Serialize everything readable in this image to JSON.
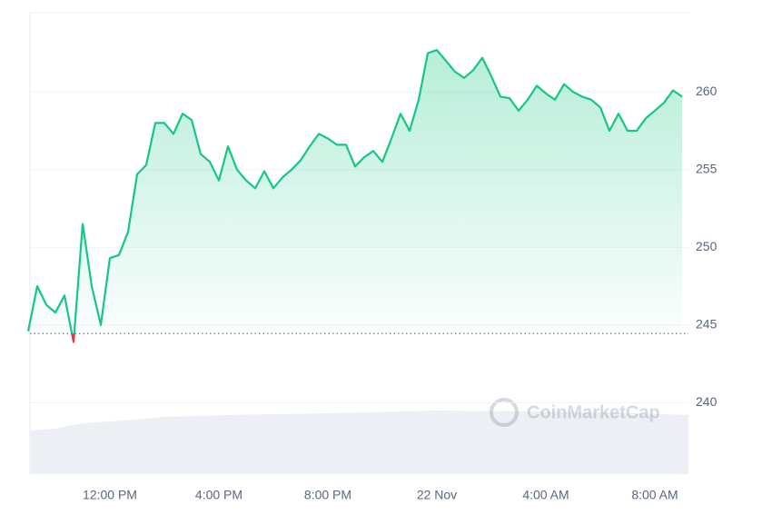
{
  "chart_data": {
    "type": "line",
    "watermark": "CoinMarketCap",
    "categories": [
      null,
      null,
      null,
      null,
      null,
      null,
      null,
      null,
      null,
      "12:00 PM",
      null,
      null,
      null,
      null,
      null,
      null,
      null,
      null,
      null,
      null,
      null,
      "4:00 PM",
      null,
      null,
      null,
      null,
      null,
      null,
      null,
      null,
      null,
      null,
      null,
      "8:00 PM",
      null,
      null,
      null,
      null,
      null,
      null,
      null,
      null,
      null,
      null,
      null,
      "22 Nov",
      null,
      null,
      null,
      null,
      null,
      null,
      null,
      null,
      null,
      null,
      null,
      "4:00 AM",
      null,
      null,
      null,
      null,
      null,
      null,
      null,
      null,
      null,
      null,
      null,
      "8:00 AM",
      null,
      null,
      null
    ],
    "values": [
      244.6,
      247.5,
      246.3,
      245.8,
      246.9,
      243.9,
      251.5,
      247.5,
      245,
      249.3,
      249.5,
      251,
      254.7,
      255.3,
      258,
      258,
      257.3,
      258.6,
      258.2,
      256,
      255.5,
      254.3,
      256.5,
      255,
      254.3,
      253.8,
      254.9,
      253.8,
      254.5,
      255,
      255.6,
      256.5,
      257.3,
      257,
      256.6,
      256.6,
      255.2,
      255.8,
      256.2,
      255.5,
      257,
      258.6,
      257.5,
      259.5,
      262.5,
      262.7,
      262,
      261.3,
      260.9,
      261.4,
      262.2,
      261,
      259.7,
      259.6,
      258.8,
      259.5,
      260.4,
      259.9,
      259.5,
      260.5,
      260,
      259.7,
      259.5,
      259,
      257.5,
      258.6,
      257.5,
      257.5,
      258.3,
      258.8,
      259.3,
      260.1,
      259.7
    ],
    "reference": 244.45,
    "color": "#16c784",
    "below_color": "#ea3943",
    "ylim": [
      235.4,
      265.1
    ],
    "yticks": [
      240,
      245,
      250,
      255,
      260
    ],
    "grid": true
  }
}
